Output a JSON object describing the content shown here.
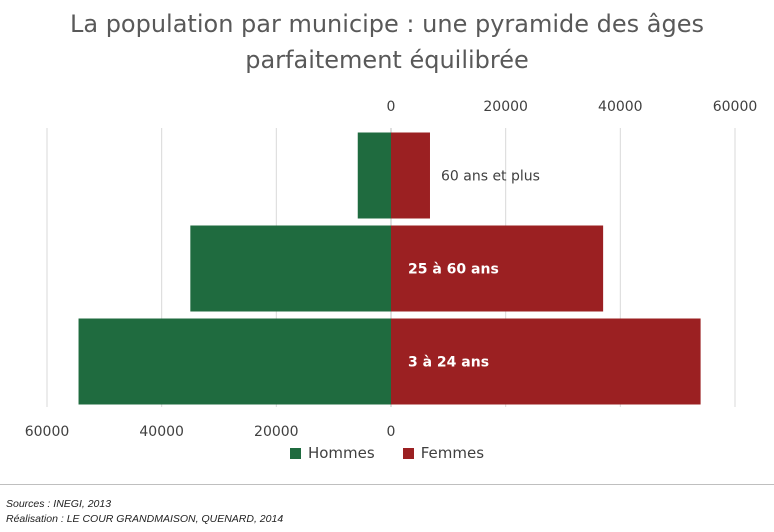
{
  "title_lines": [
    "La population par municipe : une pyramide des âges",
    "parfaitement équilibrée"
  ],
  "legend": [
    {
      "label": "Hommes",
      "color": "#1f6b3f"
    },
    {
      "label": "Femmes",
      "color": "#9b2022"
    }
  ],
  "sources": "Sources : INEGI, 2013",
  "realisation": "Réalisation : LE COUR GRANDMAISON, QUENARD, 2014",
  "chart_data": {
    "type": "bar",
    "orientation": "horizontal population pyramid",
    "categories": [
      "60 ans et plus",
      "25 à 60 ans",
      "3 à 24 ans"
    ],
    "series": [
      {
        "name": "Hommes",
        "color": "#1f6b3f",
        "values": [
          5800,
          35000,
          54500
        ]
      },
      {
        "name": "Femmes",
        "color": "#9b2022",
        "values": [
          6800,
          37000,
          54000
        ]
      }
    ],
    "top_axis_ticks": [
      "0",
      "20000",
      "40000",
      "60000"
    ],
    "bottom_axis_ticks": [
      "60000",
      "40000",
      "20000",
      "0"
    ],
    "xlim": [
      -60000,
      60000
    ],
    "grid": true
  }
}
